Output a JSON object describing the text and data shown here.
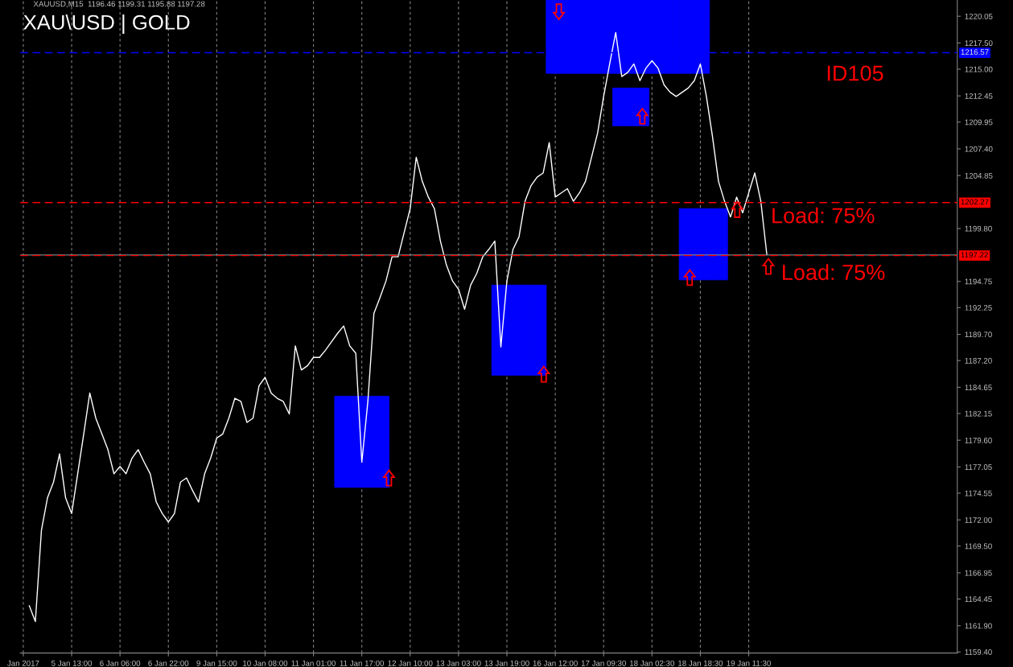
{
  "chart_data": {
    "type": "line",
    "title": "XAU\\USD | GOLD",
    "subtitle": "XAUUSD,M15  1196.46 1199.31 1195.88 1197.28",
    "annotations": [
      "ID105",
      "Load: 75%",
      "Load: 75%"
    ],
    "categories": [
      "Jan 2017",
      null,
      null,
      null,
      null,
      null,
      null,
      null,
      "5 Jan 13:00",
      null,
      null,
      null,
      null,
      null,
      null,
      null,
      "6 Jan 06:00",
      null,
      null,
      null,
      null,
      null,
      null,
      null,
      "6 Jan 22:00",
      null,
      null,
      null,
      null,
      null,
      null,
      null,
      "9 Jan 15:00",
      null,
      null,
      null,
      null,
      null,
      null,
      null,
      "10 Jan 08:00",
      null,
      null,
      null,
      null,
      null,
      null,
      null,
      "11 Jan 01:00",
      null,
      null,
      null,
      null,
      null,
      null,
      null,
      "11 Jan 17:00",
      null,
      null,
      null,
      null,
      null,
      null,
      null,
      "12 Jan 10:00",
      null,
      null,
      null,
      null,
      null,
      null,
      null,
      "13 Jan 03:00",
      null,
      null,
      null,
      null,
      null,
      null,
      null,
      "13 Jan 19:00",
      null,
      null,
      null,
      null,
      null,
      null,
      null,
      "16 Jan 12:00",
      null,
      null,
      null,
      null,
      null,
      null,
      null,
      "17 Jan 09:30",
      null,
      null,
      null,
      null,
      null,
      null,
      null,
      "18 Jan 02:30",
      null,
      null,
      null,
      null,
      null,
      null,
      null,
      "18 Jan 18:30",
      null,
      null,
      null,
      null,
      null,
      null,
      null,
      "19 Jan 11:30",
      null,
      null,
      null,
      null,
      null,
      null,
      null,
      null,
      null,
      null,
      null,
      null,
      null,
      null,
      null,
      null,
      null,
      null,
      null,
      null,
      null,
      null,
      null,
      null,
      null,
      null,
      null,
      null,
      null,
      null,
      null,
      null,
      null,
      null
    ],
    "series": [
      {
        "type": "bar",
        "color": "#0000ff",
        "base": [
          null,
          null,
          null,
          null,
          null,
          null,
          null,
          null,
          null,
          null,
          null,
          null,
          null,
          null,
          null,
          null,
          null,
          null,
          null,
          null,
          null,
          null,
          null,
          null,
          null,
          null,
          null,
          null,
          null,
          null,
          null,
          null,
          null,
          null,
          null,
          null,
          null,
          null,
          null,
          null,
          null,
          null,
          null,
          null,
          null,
          null,
          null,
          null,
          null,
          null,
          null,
          null,
          1175.1,
          1175.1,
          1175.1,
          1175.1,
          1175.1,
          1175.1,
          1175.1,
          1175.1,
          1175.1,
          null,
          null,
          null,
          null,
          null,
          null,
          null,
          null,
          null,
          null,
          null,
          null,
          null,
          null,
          null,
          null,
          null,
          null,
          null,
          null,
          null,
          null,
          null,
          null,
          null,
          null,
          null,
          null,
          null,
          null,
          null,
          null,
          null,
          null,
          null,
          null,
          null,
          null,
          null,
          null,
          null,
          null,
          null,
          null,
          null,
          null,
          null,
          null,
          null,
          null,
          null,
          null,
          null,
          null,
          null,
          null,
          null,
          null,
          null,
          null,
          null,
          null,
          null,
          null,
          null,
          null,
          null,
          null,
          null,
          null,
          null,
          null,
          null,
          null,
          null,
          null,
          null,
          null,
          null,
          null,
          null,
          null,
          null,
          null,
          null,
          null,
          null,
          null,
          null,
          null,
          null,
          null,
          null,
          null
        ],
        "values": [
          null,
          null,
          null,
          null,
          null,
          null,
          null,
          null,
          null,
          null,
          null,
          null,
          null,
          null,
          null,
          null,
          null,
          null,
          null,
          null,
          null,
          null,
          null,
          null,
          null,
          null,
          null,
          null,
          null,
          null,
          null,
          null,
          null,
          null,
          null,
          null,
          null,
          null,
          null,
          null,
          null,
          null,
          null,
          null,
          null,
          null,
          null,
          null,
          null,
          null,
          null,
          null,
          8.7,
          8.7,
          8.7,
          8.7,
          8.7,
          8.7,
          8.7,
          8.7,
          8.7,
          null,
          null,
          null,
          null,
          null,
          null,
          null,
          null,
          null,
          null,
          null,
          null,
          null,
          null,
          null,
          null,
          null,
          null,
          null,
          null,
          null,
          null,
          null,
          null,
          null,
          null,
          null,
          null,
          null,
          null,
          null,
          null,
          null,
          null,
          null,
          null,
          null,
          null,
          null,
          null,
          null,
          null,
          null,
          null,
          null,
          null,
          null,
          null,
          null,
          null,
          null,
          null,
          null,
          null,
          null,
          null,
          null,
          null,
          null,
          null,
          null,
          null,
          null,
          null,
          null,
          null,
          null,
          null,
          null,
          null,
          null,
          null,
          null,
          null,
          null,
          null,
          null,
          null,
          null,
          null,
          null,
          null,
          null,
          null,
          null,
          null,
          null,
          null,
          null,
          null,
          null,
          null,
          null,
          null
        ]
      },
      {
        "type": "bar",
        "color": "#0000ff",
        "base": [
          null,
          null,
          null,
          null,
          null,
          null,
          null,
          null,
          null,
          null,
          null,
          null,
          null,
          null,
          null,
          null,
          null,
          null,
          null,
          null,
          null,
          null,
          null,
          null,
          null,
          null,
          null,
          null,
          null,
          null,
          null,
          null,
          null,
          null,
          null,
          null,
          null,
          null,
          null,
          null,
          null,
          null,
          null,
          null,
          null,
          null,
          null,
          null,
          null,
          null,
          null,
          null,
          null,
          null,
          null,
          null,
          null,
          null,
          null,
          null,
          null,
          null,
          null,
          null,
          null,
          null,
          null,
          null,
          null,
          null,
          null,
          null,
          null,
          null,
          null,
          null,
          null,
          null,
          1185.8,
          1185.8,
          1185.8,
          1185.8,
          1185.8,
          1185.8,
          1185.8,
          1185.8,
          1185.8,
          null,
          null,
          null,
          null,
          null,
          null,
          null,
          null,
          null,
          null,
          null,
          null,
          null,
          null,
          null,
          null,
          null,
          null,
          null,
          null,
          null,
          null,
          null,
          null,
          null,
          null,
          null,
          null,
          null,
          null,
          null,
          null,
          null,
          null,
          null,
          null,
          null,
          null,
          null,
          null,
          null,
          null,
          null,
          null,
          null,
          null,
          null,
          null,
          null,
          null,
          null,
          null,
          null,
          null,
          null,
          null,
          null,
          null,
          null,
          null,
          null,
          null,
          null,
          null,
          null,
          null,
          null,
          null
        ],
        "values": [
          null,
          null,
          null,
          null,
          null,
          null,
          null,
          null,
          null,
          null,
          null,
          null,
          null,
          null,
          null,
          null,
          null,
          null,
          null,
          null,
          null,
          null,
          null,
          null,
          null,
          null,
          null,
          null,
          null,
          null,
          null,
          null,
          null,
          null,
          null,
          null,
          null,
          null,
          null,
          null,
          null,
          null,
          null,
          null,
          null,
          null,
          null,
          null,
          null,
          null,
          null,
          null,
          null,
          null,
          null,
          null,
          null,
          null,
          null,
          null,
          null,
          null,
          null,
          null,
          null,
          null,
          null,
          null,
          null,
          null,
          null,
          null,
          null,
          null,
          null,
          null,
          null,
          null,
          8.6,
          8.6,
          8.6,
          8.6,
          8.6,
          8.6,
          8.6,
          8.6,
          8.6,
          null,
          null,
          null,
          null,
          null,
          null,
          null,
          null,
          null,
          null,
          null,
          null,
          null,
          null,
          null,
          null,
          null,
          null,
          null,
          null,
          null,
          null,
          null,
          null,
          null,
          null,
          null,
          null,
          null,
          null,
          null,
          null,
          null,
          null,
          null,
          null,
          null,
          null,
          null,
          null,
          null,
          null,
          null,
          null,
          null,
          null,
          null,
          null,
          null,
          null,
          null,
          null,
          null,
          null,
          null,
          null,
          null,
          null,
          null,
          null,
          null,
          null,
          null,
          null,
          null,
          null,
          null,
          null
        ]
      },
      {
        "type": "bar",
        "color": "#0000ff",
        "base": [
          null,
          null,
          null,
          null,
          null,
          null,
          null,
          null,
          null,
          null,
          null,
          null,
          null,
          null,
          null,
          null,
          null,
          null,
          null,
          null,
          null,
          null,
          null,
          null,
          null,
          null,
          null,
          null,
          null,
          null,
          null,
          null,
          null,
          null,
          null,
          null,
          null,
          null,
          null,
          null,
          null,
          null,
          null,
          null,
          null,
          null,
          null,
          null,
          null,
          null,
          null,
          null,
          null,
          null,
          null,
          null,
          null,
          null,
          null,
          null,
          null,
          null,
          null,
          null,
          null,
          null,
          null,
          null,
          null,
          null,
          null,
          null,
          null,
          null,
          null,
          null,
          null,
          null,
          null,
          null,
          null,
          null,
          null,
          null,
          null,
          null,
          null,
          1214.6,
          1214.6,
          1214.6,
          1214.6,
          1214.6,
          1214.6,
          1214.6,
          1214.6,
          1214.6,
          1214.6,
          1214.6,
          1214.6,
          1214.6,
          1214.6,
          1214.6,
          1214.6,
          1214.6,
          1214.6,
          1214.6,
          1214.6,
          1214.6,
          1214.6,
          1214.6,
          1214.6,
          1214.6,
          1214.6,
          1214.6,
          null,
          null,
          null,
          null,
          null,
          null,
          null,
          null,
          null,
          null,
          null,
          null,
          null,
          null,
          null,
          null,
          null,
          null,
          null,
          null,
          null,
          null,
          null,
          null,
          null,
          null,
          null,
          null,
          null,
          null,
          null,
          null,
          null,
          null,
          null,
          null,
          null,
          null,
          null,
          null,
          null
        ],
        "values": [
          null,
          null,
          null,
          null,
          null,
          null,
          null,
          null,
          null,
          null,
          null,
          null,
          null,
          null,
          null,
          null,
          null,
          null,
          null,
          null,
          null,
          null,
          null,
          null,
          null,
          null,
          null,
          null,
          null,
          null,
          null,
          null,
          null,
          null,
          null,
          null,
          null,
          null,
          null,
          null,
          null,
          null,
          null,
          null,
          null,
          null,
          null,
          null,
          null,
          null,
          null,
          null,
          null,
          null,
          null,
          null,
          null,
          null,
          null,
          null,
          null,
          null,
          null,
          null,
          null,
          null,
          null,
          null,
          null,
          null,
          null,
          null,
          null,
          null,
          null,
          null,
          null,
          null,
          null,
          null,
          null,
          null,
          null,
          null,
          null,
          null,
          null,
          7.0,
          7.0,
          7.0,
          7.0,
          7.0,
          7.0,
          7.0,
          7.0,
          7.0,
          7.0,
          7.0,
          7.0,
          7.0,
          7.0,
          7.0,
          7.0,
          7.0,
          7.0,
          7.0,
          7.0,
          7.0,
          7.0,
          7.0,
          7.0,
          7.0,
          7.0,
          7.0,
          null,
          null,
          null,
          null,
          null,
          null,
          null,
          null,
          null,
          null,
          null,
          null,
          null,
          null,
          null,
          null,
          null,
          null,
          null,
          null,
          null,
          null,
          null,
          null,
          null,
          null,
          null,
          null,
          null,
          null,
          null,
          null,
          null,
          null,
          null,
          null,
          null,
          null,
          null,
          null,
          null
        ]
      },
      {
        "type": "bar",
        "color": "#0000ff",
        "base": [
          null,
          null,
          null,
          null,
          null,
          null,
          null,
          null,
          null,
          null,
          null,
          null,
          null,
          null,
          null,
          null,
          null,
          null,
          null,
          null,
          null,
          null,
          null,
          null,
          null,
          null,
          null,
          null,
          null,
          null,
          null,
          null,
          null,
          null,
          null,
          null,
          null,
          null,
          null,
          null,
          null,
          null,
          null,
          null,
          null,
          null,
          null,
          null,
          null,
          null,
          null,
          null,
          null,
          null,
          null,
          null,
          null,
          null,
          null,
          null,
          null,
          null,
          null,
          null,
          null,
          null,
          null,
          null,
          null,
          null,
          null,
          null,
          null,
          null,
          null,
          null,
          null,
          null,
          null,
          null,
          null,
          null,
          null,
          null,
          null,
          null,
          null,
          null,
          null,
          null,
          null,
          null,
          null,
          null,
          null,
          null,
          null,
          null,
          1209.6,
          1209.6,
          1209.6,
          1209.6,
          1209.6,
          1209.6,
          null,
          null,
          null,
          null,
          null,
          null,
          null,
          null,
          null,
          null,
          null,
          null,
          null,
          null,
          null,
          null,
          null,
          null,
          null,
          null,
          null,
          null,
          null,
          null,
          null,
          null,
          null,
          null,
          null,
          null,
          null,
          null,
          null,
          null,
          null,
          null,
          null,
          null,
          null,
          null,
          null,
          null,
          null,
          null,
          null,
          null,
          null,
          null,
          null,
          null,
          null
        ],
        "values": [
          null,
          null,
          null,
          null,
          null,
          null,
          null,
          null,
          null,
          null,
          null,
          null,
          null,
          null,
          null,
          null,
          null,
          null,
          null,
          null,
          null,
          null,
          null,
          null,
          null,
          null,
          null,
          null,
          null,
          null,
          null,
          null,
          null,
          null,
          null,
          null,
          null,
          null,
          null,
          null,
          null,
          null,
          null,
          null,
          null,
          null,
          null,
          null,
          null,
          null,
          null,
          null,
          null,
          null,
          null,
          null,
          null,
          null,
          null,
          null,
          null,
          null,
          null,
          null,
          null,
          null,
          null,
          null,
          null,
          null,
          null,
          null,
          null,
          null,
          null,
          null,
          null,
          null,
          null,
          null,
          null,
          null,
          null,
          null,
          null,
          null,
          null,
          null,
          null,
          null,
          null,
          null,
          null,
          null,
          null,
          null,
          null,
          null,
          3.6,
          3.6,
          3.6,
          3.6,
          3.6,
          3.6,
          null,
          null,
          null,
          null,
          null,
          null,
          null,
          null,
          null,
          null,
          null,
          null,
          null,
          null,
          null,
          null,
          null,
          null,
          null,
          null,
          null,
          null,
          null,
          null,
          null,
          null,
          null,
          null,
          null,
          null,
          null,
          null,
          null,
          null,
          null,
          null,
          null,
          null,
          null,
          null,
          null,
          null,
          null,
          null,
          null,
          null,
          null,
          null,
          null,
          null,
          null
        ]
      },
      {
        "type": "bar",
        "color": "#0000ff",
        "base": [
          null,
          null,
          null,
          null,
          null,
          null,
          null,
          null,
          null,
          null,
          null,
          null,
          null,
          null,
          null,
          null,
          null,
          null,
          null,
          null,
          null,
          null,
          null,
          null,
          null,
          null,
          null,
          null,
          null,
          null,
          null,
          null,
          null,
          null,
          null,
          null,
          null,
          null,
          null,
          null,
          null,
          null,
          null,
          null,
          null,
          null,
          null,
          null,
          null,
          null,
          null,
          null,
          null,
          null,
          null,
          null,
          null,
          null,
          null,
          null,
          null,
          null,
          null,
          null,
          null,
          null,
          null,
          null,
          null,
          null,
          null,
          null,
          null,
          null,
          null,
          null,
          null,
          null,
          null,
          null,
          null,
          null,
          null,
          null,
          null,
          null,
          null,
          null,
          null,
          null,
          null,
          null,
          null,
          null,
          null,
          null,
          null,
          null,
          null,
          null,
          null,
          null,
          null,
          null,
          null,
          null,
          null,
          null,
          null,
          1194.9,
          1194.9,
          1194.9,
          1194.9,
          1194.9,
          1194.9,
          1194.9,
          1194.9,
          null,
          null,
          null,
          null,
          null,
          null,
          null,
          null,
          null,
          null,
          null,
          null,
          null,
          null,
          null,
          null,
          null,
          null,
          null,
          null,
          null,
          null,
          null,
          null,
          null,
          null,
          null,
          null,
          null,
          null,
          null,
          null,
          null,
          null,
          null,
          null,
          null,
          null
        ],
        "values": [
          null,
          null,
          null,
          null,
          null,
          null,
          null,
          null,
          null,
          null,
          null,
          null,
          null,
          null,
          null,
          null,
          null,
          null,
          null,
          null,
          null,
          null,
          null,
          null,
          null,
          null,
          null,
          null,
          null,
          null,
          null,
          null,
          null,
          null,
          null,
          null,
          null,
          null,
          null,
          null,
          null,
          null,
          null,
          null,
          null,
          null,
          null,
          null,
          null,
          null,
          null,
          null,
          null,
          null,
          null,
          null,
          null,
          null,
          null,
          null,
          null,
          null,
          null,
          null,
          null,
          null,
          null,
          null,
          null,
          null,
          null,
          null,
          null,
          null,
          null,
          null,
          null,
          null,
          null,
          null,
          null,
          null,
          null,
          null,
          null,
          null,
          null,
          null,
          null,
          null,
          null,
          null,
          null,
          null,
          null,
          null,
          null,
          null,
          null,
          null,
          null,
          null,
          null,
          null,
          null,
          null,
          null,
          null,
          null,
          6.8,
          6.8,
          6.8,
          6.8,
          6.8,
          6.8,
          6.8,
          6.8,
          null,
          null,
          null,
          null,
          null,
          null,
          null,
          null,
          null,
          null,
          null,
          null,
          null,
          null,
          null,
          null,
          null,
          null,
          null,
          null,
          null,
          null,
          null,
          null,
          null,
          null,
          null,
          null,
          null,
          null,
          null,
          null,
          null,
          null,
          null,
          null,
          null,
          null
        ]
      },
      {
        "color": "#ffffff",
        "values": [
          null,
          1163.8,
          1162.3,
          1171.0,
          1174.1,
          1175.6,
          1178.3,
          1174.1,
          1172.6,
          1176.4,
          1180.2,
          1184.1,
          1181.7,
          1180.2,
          1178.7,
          1176.4,
          1177.1,
          1176.4,
          1177.9,
          1178.7,
          1177.5,
          1176.4,
          1173.7,
          1172.6,
          1171.8,
          1172.6,
          1175.6,
          1176.0,
          1174.8,
          1173.7,
          1176.4,
          1177.9,
          1179.8,
          1180.2,
          1181.7,
          1183.6,
          1183.3,
          1181.3,
          1181.7,
          1184.8,
          1185.6,
          1184.1,
          1183.6,
          1183.3,
          1182.1,
          1188.6,
          1186.3,
          1186.7,
          1187.5,
          1187.5,
          1188.2,
          1189.0,
          1189.8,
          1190.5,
          1188.6,
          1187.9,
          1177.5,
          1183.3,
          1191.7,
          1193.2,
          1194.8,
          1197.1,
          1197.1,
          1199.4,
          1201.7,
          1206.6,
          1204.3,
          1202.8,
          1201.7,
          1198.6,
          1196.3,
          1194.8,
          1194.0,
          1192.1,
          1194.4,
          1195.5,
          1197.1,
          1197.8,
          1198.6,
          1188.5,
          1194.8,
          1197.8,
          1199.0,
          1202.4,
          1203.9,
          1204.7,
          1205.1,
          1208.0,
          1202.8,
          1203.2,
          1203.6,
          1202.4,
          1203.2,
          1204.3,
          1206.6,
          1208.9,
          1212.4,
          1215.5,
          1218.5,
          1214.3,
          1214.7,
          1215.5,
          1213.9,
          1215.1,
          1215.8,
          1215.1,
          1213.5,
          1212.8,
          1212.4,
          1212.8,
          1213.2,
          1213.9,
          1215.5,
          1212.4,
          1208.6,
          1204.3,
          1202.4,
          1200.9,
          1202.8,
          1201.3,
          1203.2,
          1205.1,
          1202.4,
          1197.3,
          null,
          null,
          null,
          null,
          null,
          null,
          null,
          null,
          null,
          null,
          null,
          null,
          null,
          null,
          null,
          null,
          null,
          null,
          null,
          null,
          null,
          null,
          null,
          null,
          null,
          null,
          null,
          null,
          null,
          null,
          null
        ]
      }
    ],
    "ylim": [
      1159.3,
      1221.6
    ],
    "yticks": [
      {
        "value": 1159.4,
        "label": "1159.40"
      },
      {
        "value": 1161.9,
        "label": "1161.90"
      },
      1164.45,
      1166.95,
      {
        "value": 1169.5,
        "label": "1169.50"
      },
      {
        "value": 1172.0,
        "label": "1172.00"
      },
      1174.55,
      1177.05,
      {
        "value": 1179.6,
        "label": "1179.60"
      },
      1182.15,
      1184.65,
      {
        "value": 1187.2,
        "label": "1187.20"
      },
      {
        "value": 1189.7,
        "label": "1189.70"
      },
      1192.25,
      1194.75,
      {
        "value": 1199.8,
        "label": "1199.80"
      },
      1204.85,
      {
        "value": 1207.4,
        "label": "1207.40"
      },
      1209.95,
      1212.45,
      {
        "value": 1215.0,
        "label": "1215.00"
      },
      {
        "value": 1217.5,
        "label": "1217.50"
      },
      1220.05
    ],
    "ref_lines": [
      {
        "axis": "y",
        "value": 1197.28,
        "color": "#808080",
        "line_style": "solid"
      },
      {
        "axis": "y",
        "value": 1216.57,
        "label": "1216.57",
        "color": "#0000ff",
        "line_style": "dashed"
      },
      {
        "axis": "y",
        "value": 1202.27,
        "label": "1202.27",
        "color": "#ff0000",
        "line_style": "dashed"
      },
      {
        "axis": "y",
        "value": 1197.22,
        "label": "1197.22",
        "color": "#ff0000",
        "line_style": "dashed"
      }
    ],
    "grid": "x"
  }
}
